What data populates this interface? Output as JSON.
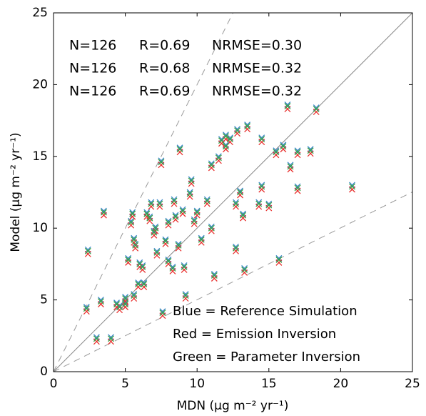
{
  "chart_data": {
    "type": "scatter",
    "xlabel": "MDN (μg m⁻² yr⁻¹)",
    "ylabel": "Model (μg m⁻² yr⁻¹)",
    "xlim": [
      0,
      25
    ],
    "ylim": [
      0,
      25
    ],
    "xticks": [
      0,
      5,
      10,
      15,
      20,
      25
    ],
    "yticks": [
      0,
      5,
      10,
      15,
      20,
      25
    ],
    "annotations": [
      {
        "color": "#e8312f",
        "texts": [
          "N=126",
          "R=0.69",
          "NRMSE=0.30"
        ]
      },
      {
        "color": "#3a86c8",
        "texts": [
          "N=126",
          "R=0.68",
          "NRMSE=0.32"
        ]
      },
      {
        "color": "#3aa043",
        "texts": [
          "N=126",
          "R=0.69",
          "NRMSE=0.32"
        ]
      }
    ],
    "x": [
      2.4,
      2.3,
      3.3,
      3.5,
      3.0,
      4.0,
      4.4,
      4.6,
      5.0,
      5.0,
      5.2,
      5.4,
      5.5,
      5.6,
      5.7,
      5.6,
      5.9,
      6.0,
      6.2,
      6.3,
      6.5,
      6.7,
      6.8,
      7.0,
      7.1,
      7.2,
      7.4,
      7.5,
      7.6,
      7.8,
      8.0,
      8.0,
      8.3,
      8.4,
      8.5,
      8.7,
      8.8,
      9.0,
      9.1,
      9.2,
      9.5,
      9.6,
      9.8,
      10.0,
      10.3,
      11.0,
      11.0,
      11.5,
      11.7,
      12.0,
      12.3,
      12.7,
      12.7,
      12.8,
      13.0,
      13.3,
      13.5,
      14.5,
      14.5,
      15.0,
      15.5,
      15.7,
      16.0,
      16.3,
      16.5,
      17.0,
      17.0,
      17.9,
      18.3,
      20.8,
      13.2,
      11.2,
      14.3,
      12.0,
      10.7
    ],
    "series": [
      {
        "name": "Blue = Reference Simulation",
        "color": "#3a86c8",
        "values": [
          8.5,
          4.5,
          5.0,
          11.2,
          2.4,
          2.4,
          4.8,
          4.6,
          4.8,
          5.2,
          7.9,
          10.5,
          11.1,
          9.3,
          8.9,
          5.4,
          6.2,
          7.6,
          7.4,
          6.2,
          11.1,
          10.8,
          11.8,
          9.8,
          10.1,
          8.4,
          11.8,
          14.7,
          4.2,
          9.2,
          7.8,
          10.5,
          7.3,
          12.0,
          10.9,
          8.9,
          15.6,
          11.3,
          7.4,
          5.4,
          12.5,
          13.4,
          10.6,
          11.2,
          9.3,
          14.5,
          10.1,
          15.0,
          16.2,
          16.5,
          16.3,
          11.8,
          8.7,
          16.9,
          12.6,
          7.2,
          17.2,
          16.3,
          13.0,
          11.7,
          15.4,
          7.9,
          15.8,
          18.6,
          14.4,
          12.9,
          15.4,
          15.5,
          18.4,
          13.0,
          11.0,
          6.8,
          11.8,
          15.8,
          12.0
        ]
      },
      {
        "name": "Red = Emission Inversion",
        "color": "#e8312f",
        "values": [
          8.2,
          4.2,
          4.7,
          10.9,
          2.1,
          2.1,
          4.5,
          4.3,
          4.5,
          4.9,
          7.6,
          10.2,
          10.8,
          9.0,
          8.6,
          5.1,
          5.9,
          7.3,
          7.1,
          5.9,
          10.8,
          10.5,
          11.5,
          9.5,
          9.8,
          8.1,
          11.5,
          14.4,
          3.9,
          8.9,
          7.5,
          10.2,
          7.0,
          11.7,
          10.6,
          8.6,
          15.3,
          11.0,
          7.1,
          5.1,
          12.2,
          13.1,
          10.3,
          10.9,
          9.0,
          14.2,
          9.8,
          14.7,
          15.9,
          16.2,
          16.0,
          11.5,
          8.4,
          16.6,
          12.3,
          6.9,
          16.9,
          16.0,
          12.7,
          11.4,
          15.1,
          7.6,
          15.5,
          18.3,
          14.1,
          12.6,
          15.1,
          15.2,
          18.1,
          12.7,
          10.7,
          6.5,
          11.5,
          15.5,
          11.7
        ]
      },
      {
        "name": "Green = Parameter Inversion",
        "color": "#3aa043",
        "values": [
          8.4,
          4.4,
          4.9,
          11.1,
          2.3,
          2.3,
          4.7,
          4.5,
          4.7,
          5.1,
          7.8,
          10.4,
          11.0,
          9.2,
          8.8,
          5.3,
          6.1,
          7.5,
          7.3,
          6.1,
          11.0,
          10.7,
          11.7,
          9.7,
          10.0,
          8.3,
          11.7,
          14.6,
          4.1,
          9.1,
          7.7,
          10.4,
          7.2,
          11.9,
          10.8,
          8.8,
          15.5,
          11.2,
          7.3,
          5.3,
          12.4,
          13.3,
          10.5,
          11.1,
          9.2,
          14.4,
          10.0,
          14.9,
          16.1,
          16.4,
          16.2,
          11.7,
          8.6,
          16.8,
          12.5,
          7.1,
          17.1,
          16.2,
          12.9,
          11.6,
          15.3,
          7.8,
          15.7,
          18.5,
          14.3,
          12.8,
          15.3,
          15.4,
          18.3,
          12.9,
          10.9,
          6.7,
          11.7,
          15.7,
          11.9
        ]
      }
    ]
  }
}
